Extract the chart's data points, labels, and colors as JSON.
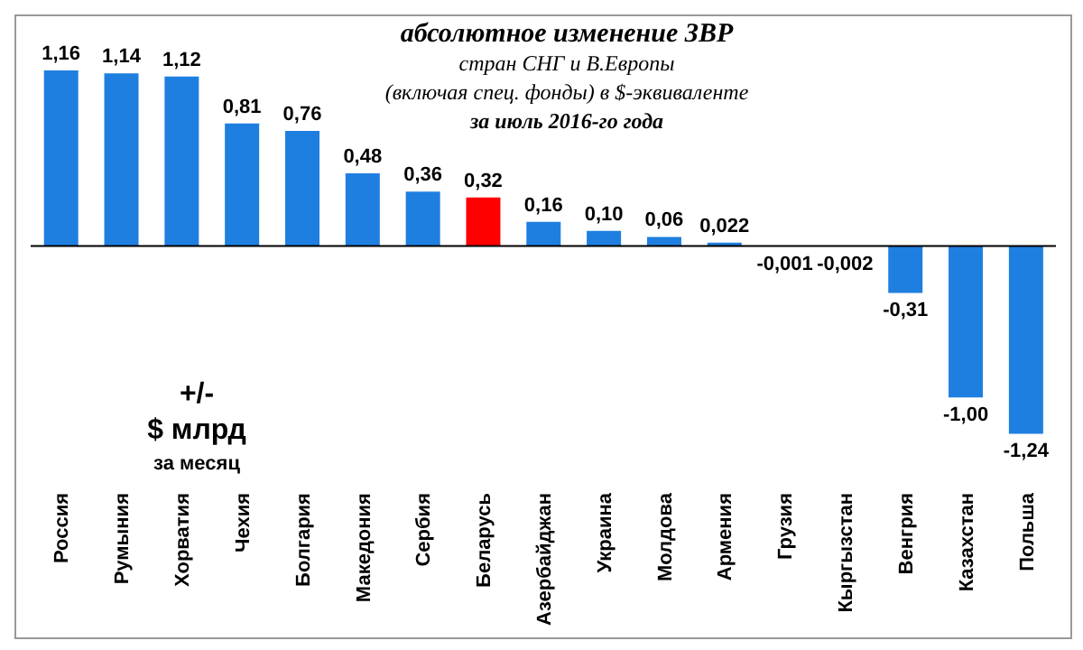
{
  "chart_data": {
    "type": "bar",
    "title": "абсолютное изменение  ЗВР",
    "subtitle": "стран СНГ и В.Европы\n(включая  спец. фонды) в $-эквиваленте\nза июль 2016-го года",
    "categories": [
      "Россия",
      "Румыния",
      "Хорватия",
      "Чехия",
      "Болгария",
      "Македония",
      "Сербия",
      "Беларусь",
      "Азербайджан",
      "Украина",
      "Молдова",
      "Армения",
      "Грузия",
      "Кыргызстан",
      "Венгрия",
      "Казахстан",
      "Польша"
    ],
    "values": [
      1.16,
      1.14,
      1.12,
      0.81,
      0.76,
      0.48,
      0.36,
      0.32,
      0.16,
      0.1,
      0.06,
      0.022,
      -0.001,
      -0.002,
      -0.31,
      -1.0,
      -1.24
    ],
    "colors": [
      "#1f7fe0",
      "#1f7fe0",
      "#1f7fe0",
      "#1f7fe0",
      "#1f7fe0",
      "#1f7fe0",
      "#1f7fe0",
      "#ff0000",
      "#1f7fe0",
      "#1f7fe0",
      "#1f7fe0",
      "#1f7fe0",
      "#1f7fe0",
      "#1f7fe0",
      "#1f7fe0",
      "#1f7fe0",
      "#1f7fe0"
    ],
    "value_labels": [
      "1,16",
      "1,14",
      "1,12",
      "0,81",
      "0,76",
      "0,48",
      "0,36",
      "0,32",
      "0,16",
      "0,10",
      "0,06",
      "0,022",
      "-0,001",
      "-0,002",
      "-0,31",
      "-1,00",
      "-1,24"
    ],
    "annotations": [
      "+/-\n$ млрд\nза месяц"
    ]
  }
}
